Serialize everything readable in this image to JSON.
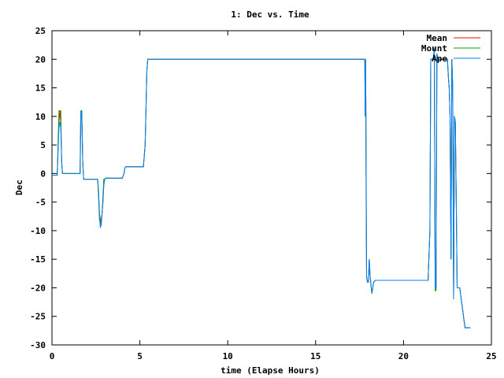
{
  "chart_data": {
    "type": "line",
    "title": "1: Dec vs. Time",
    "xlabel": "time (Elapse Hours)",
    "ylabel": "Dec",
    "xlim": [
      0,
      25
    ],
    "ylim": [
      -30,
      25
    ],
    "xticks": [
      "0",
      "5",
      "10",
      "15",
      "20",
      "25"
    ],
    "yticks": [
      "-30",
      "-25",
      "-20",
      "-15",
      "-10",
      "-5",
      "0",
      "5",
      "10",
      "15",
      "20",
      "25"
    ],
    "grid": false,
    "legend_position": "top-right",
    "series": [
      {
        "name": "Mean",
        "color": "#ff0000",
        "x": [
          0,
          0.3,
          0.3,
          0.4,
          0.45,
          0.5,
          0.55,
          0.6,
          0.65,
          0.7,
          1.6,
          1.62,
          1.65,
          1.7,
          1.75,
          1.8,
          2.6,
          2.65,
          2.7,
          2.75,
          2.8,
          2.85,
          2.9,
          2.95,
          3.0,
          3.05,
          3.1,
          3.2,
          4.0,
          4.1,
          4.15,
          4.2,
          5.2,
          5.3,
          5.4,
          5.45,
          5.5,
          17.8,
          17.82,
          17.84,
          17.86,
          17.88,
          17.9,
          17.95,
          18.0,
          18.05,
          18.1,
          18.2,
          18.3,
          18.4,
          18.5,
          19.0,
          19.5,
          20.0,
          20.5,
          21.0,
          21.4,
          21.5,
          21.55,
          21.6,
          21.7,
          21.75,
          21.8,
          21.85,
          21.9,
          21.95,
          22.0,
          22.3,
          22.4,
          22.5,
          22.55,
          22.6,
          22.65,
          22.7,
          22.75,
          22.8,
          22.85,
          22.9,
          22.95,
          23.0,
          23.05,
          23.1,
          23.2,
          23.5,
          23.8
        ],
        "y": [
          -0.3,
          -0.3,
          0,
          9,
          11,
          9,
          2,
          0,
          0,
          0,
          0,
          5,
          11,
          10,
          2,
          -1,
          -1,
          -3,
          -7,
          -8,
          -9,
          -7,
          -5,
          -2,
          -1,
          -0.8,
          -0.8,
          -0.8,
          -0.8,
          0,
          1,
          1.2,
          1.2,
          5,
          18,
          20,
          20,
          20,
          10,
          20,
          12,
          -5,
          -18,
          -19,
          -19,
          -15,
          -18,
          -21,
          -19,
          -18.7,
          -18.7,
          -18.7,
          -18.7,
          -18.7,
          -18.7,
          -18.7,
          -18.7,
          -10,
          20,
          20,
          20,
          22,
          -20,
          -20,
          21,
          20,
          20,
          20,
          20,
          20,
          17,
          15,
          10,
          -15,
          20,
          15,
          -22,
          10,
          9,
          -5,
          -20,
          -20,
          -20,
          -27,
          -27
        ]
      },
      {
        "name": "Mount",
        "color": "#00a000",
        "x": [
          0,
          0.3,
          0.3,
          0.4,
          0.45,
          0.5,
          0.55,
          0.6,
          0.65,
          0.7,
          1.6,
          1.62,
          1.65,
          1.7,
          1.75,
          1.8,
          2.6,
          2.65,
          2.7,
          2.75,
          2.8,
          2.85,
          2.9,
          2.95,
          3.0,
          3.05,
          3.1,
          3.2,
          4.0,
          4.1,
          4.15,
          4.2,
          5.2,
          5.3,
          5.4,
          5.45,
          5.5,
          17.8,
          17.82,
          17.84,
          17.86,
          17.88,
          17.9,
          17.95,
          18.0,
          18.05,
          18.1,
          18.2,
          18.3,
          18.4,
          18.5,
          19.0,
          19.5,
          20.0,
          20.5,
          21.0,
          21.4,
          21.5,
          21.55,
          21.6,
          21.7,
          21.75,
          21.8,
          21.85,
          21.9,
          21.95,
          22.0,
          22.3,
          22.4,
          22.5,
          22.55,
          22.6,
          22.65,
          22.7,
          22.75,
          22.8,
          22.85,
          22.9,
          22.95,
          23.0,
          23.05,
          23.1,
          23.2,
          23.5,
          23.8
        ],
        "y": [
          -0.3,
          -0.3,
          0,
          11,
          11,
          11,
          2,
          0,
          0,
          0,
          0,
          8,
          11,
          11,
          2,
          -1,
          -1,
          -4,
          -8,
          -9,
          -8,
          -7,
          -4,
          -1,
          -1,
          -0.8,
          -0.8,
          -0.8,
          -0.8,
          0,
          1,
          1.2,
          1.2,
          5,
          18,
          20,
          20,
          20,
          10,
          20,
          5,
          -9,
          -18,
          -19,
          -19,
          -15,
          -18,
          -21,
          -19,
          -18.7,
          -18.7,
          -18.7,
          -18.7,
          -18.7,
          -18.7,
          -18.7,
          -18.7,
          -10,
          20,
          20,
          20,
          22,
          -20.5,
          -20.5,
          21,
          20,
          20,
          20,
          20,
          20,
          17,
          15,
          10,
          -15,
          20,
          15,
          -22,
          10,
          9,
          -5,
          -20,
          -20,
          -20,
          -27,
          -27
        ]
      },
      {
        "name": "Ape",
        "color": "#0080ff",
        "x": [
          0,
          0.3,
          0.3,
          0.4,
          0.45,
          0.5,
          0.55,
          0.6,
          0.65,
          0.7,
          1.6,
          1.62,
          1.65,
          1.7,
          1.75,
          1.8,
          2.6,
          2.65,
          2.7,
          2.75,
          2.8,
          2.85,
          2.9,
          2.95,
          3.0,
          3.05,
          3.1,
          3.2,
          4.0,
          4.1,
          4.15,
          4.2,
          5.2,
          5.3,
          5.4,
          5.45,
          5.5,
          17.8,
          17.82,
          17.84,
          17.86,
          17.88,
          17.9,
          17.95,
          18.0,
          18.05,
          18.1,
          18.2,
          18.3,
          18.4,
          18.5,
          19.0,
          19.5,
          20.0,
          20.5,
          21.0,
          21.4,
          21.5,
          21.55,
          21.6,
          21.7,
          21.75,
          21.8,
          21.85,
          21.9,
          21.95,
          22.0,
          22.3,
          22.4,
          22.5,
          22.55,
          22.6,
          22.65,
          22.7,
          22.75,
          22.8,
          22.85,
          22.9,
          22.95,
          23.0,
          23.05,
          23.1,
          23.2,
          23.5,
          23.8
        ],
        "y": [
          -0.3,
          -0.3,
          0,
          8,
          9,
          8,
          2,
          0,
          0,
          0,
          0,
          5,
          11,
          10,
          2,
          -1,
          -1,
          -3,
          -7,
          -9.5,
          -9,
          -7,
          -5,
          -2,
          -1,
          -0.8,
          -0.8,
          -0.8,
          -0.8,
          0,
          1,
          1.2,
          1.2,
          5,
          18,
          20,
          20,
          20,
          10,
          20,
          13,
          -5,
          -18,
          -19,
          -19,
          -15,
          -18,
          -21,
          -19,
          -18.7,
          -18.7,
          -18.7,
          -18.7,
          -18.7,
          -18.7,
          -18.7,
          -18.7,
          -10,
          20,
          20,
          20,
          22,
          -20,
          -20,
          21,
          20,
          20,
          20,
          20,
          20,
          17,
          15,
          10,
          -15,
          20,
          15,
          -22,
          10,
          9,
          -5,
          -20,
          -20,
          -20,
          -27,
          -27
        ]
      }
    ]
  }
}
